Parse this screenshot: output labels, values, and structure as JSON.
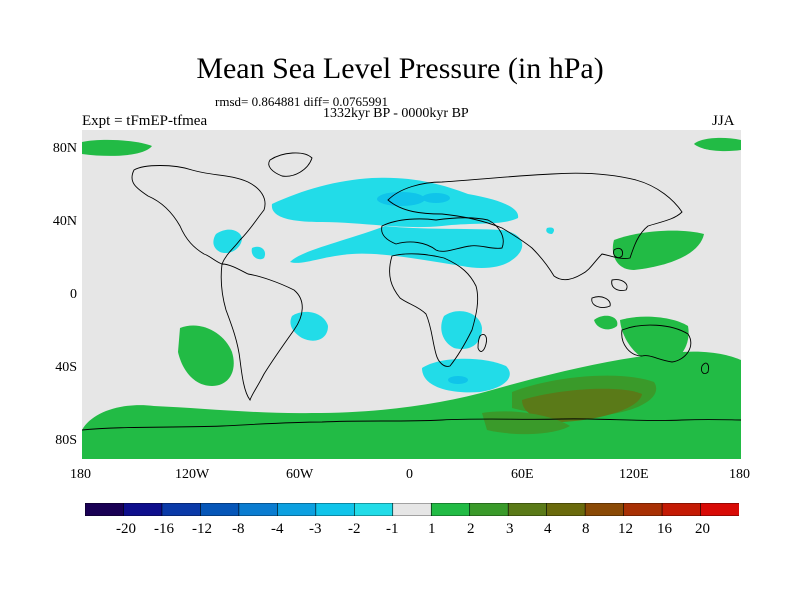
{
  "title": "Mean Sea Level Pressure (in hPa)",
  "stats": "rmsd= 0.864881 diff= 0.0765991",
  "period": "1332kyr BP - 0000kyr BP",
  "expt": "Expt = tFmEP-tfmea",
  "season": "JJA",
  "lat_labels": [
    "80N",
    "40N",
    "0",
    "40S",
    "80S"
  ],
  "lon_labels": [
    "180",
    "120W",
    "60W",
    "0",
    "60E",
    "120E",
    "180"
  ],
  "colorbar": {
    "labels": [
      "-20",
      "-16",
      "-12",
      "-8",
      "-4",
      "-3",
      "-2",
      "-1",
      "1",
      "2",
      "3",
      "4",
      "8",
      "12",
      "16",
      "20"
    ],
    "colors": [
      "#190054",
      "#0e0e8c",
      "#0a3aa8",
      "#0656b8",
      "#0a7cd0",
      "#0ca0e0",
      "#10c4ea",
      "#22dce8",
      "#e6e6e6",
      "#22bb45",
      "#3a9a2a",
      "#5a7a18",
      "#6a6a0c",
      "#8a4a06",
      "#a83004",
      "#c41a04",
      "#d80a06"
    ]
  },
  "colors": {
    "land_neutral": "#e6e6e6",
    "positive_1_2": "#22bb45",
    "positive_2_3": "#3a9a2a",
    "positive_3_4": "#5a7a18",
    "negative_1_2": "#22dce8",
    "negative_2_3": "#10c4ea",
    "coastline": "#000000"
  }
}
